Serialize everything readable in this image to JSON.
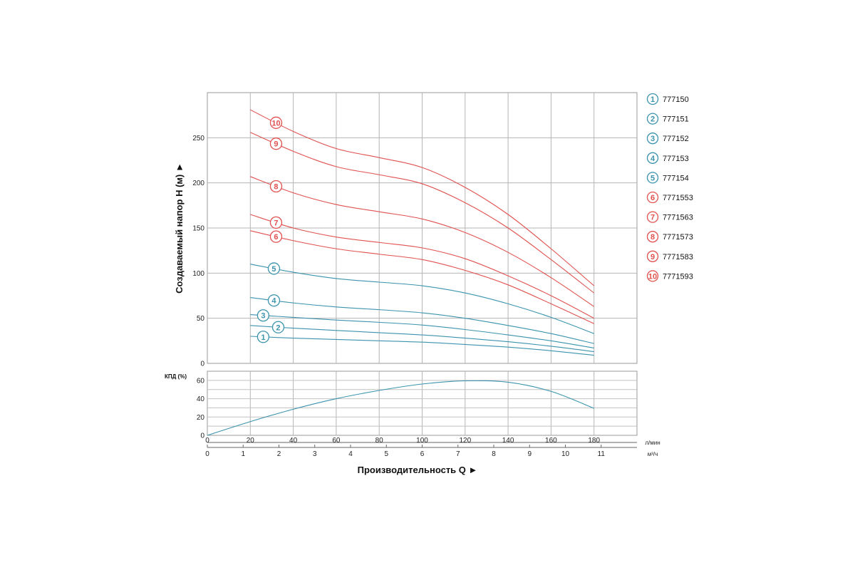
{
  "chart_data": [
    {
      "type": "line",
      "ylabel": "Создаваемый напор H (м) ►",
      "xlim": [
        0,
        200
      ],
      "ylim": [
        0,
        300
      ],
      "x_ticks": [
        20,
        40,
        60,
        80,
        100,
        120,
        140,
        160,
        180
      ],
      "y_ticks": [
        0,
        50,
        100,
        150,
        200,
        250
      ],
      "grid": true,
      "legend_position": "right",
      "x": [
        20,
        40,
        60,
        80,
        100,
        120,
        140,
        160,
        180
      ],
      "series": [
        {
          "marker": "1",
          "name": "777150",
          "color": "#3b93ad",
          "marker_x": 26,
          "values": [
            30,
            28,
            26.5,
            25,
            23.5,
            21,
            18,
            14,
            9
          ]
        },
        {
          "marker": "2",
          "name": "777151",
          "color": "#3b93ad",
          "marker_x": 33,
          "values": [
            42,
            39,
            36.5,
            34,
            31.5,
            28,
            24,
            19,
            13
          ]
        },
        {
          "marker": "3",
          "name": "777152",
          "color": "#3b93ad",
          "marker_x": 26,
          "values": [
            54,
            51,
            48,
            45.5,
            42.5,
            37.5,
            31.5,
            25,
            17
          ]
        },
        {
          "marker": "4",
          "name": "777153",
          "color": "#3b93ad",
          "marker_x": 31,
          "values": [
            73,
            67,
            62.5,
            59.5,
            56,
            50,
            42,
            33,
            22
          ]
        },
        {
          "marker": "5",
          "name": "777154",
          "color": "#3b93ad",
          "marker_x": 31,
          "values": [
            110,
            101,
            94,
            90,
            86,
            78,
            66,
            51,
            33
          ]
        },
        {
          "marker": "6",
          "name": "7771553",
          "color": "#e0514f",
          "marker_x": 32,
          "values": [
            147,
            136,
            127,
            121,
            115,
            103,
            87,
            66,
            44
          ]
        },
        {
          "marker": "7",
          "name": "7771563",
          "color": "#e0514f",
          "marker_x": 32,
          "values": [
            165,
            150,
            140,
            134,
            128,
            116,
            97,
            75,
            50
          ]
        },
        {
          "marker": "8",
          "name": "7771573",
          "color": "#e0514f",
          "marker_x": 32,
          "values": [
            207,
            189,
            176,
            168,
            160,
            145,
            123,
            95,
            63
          ]
        },
        {
          "marker": "9",
          "name": "7771583",
          "color": "#e0514f",
          "marker_x": 32,
          "values": [
            256,
            235,
            218,
            209,
            199,
            178,
            150,
            115,
            78
          ]
        },
        {
          "marker": "10",
          "name": "7771593",
          "color": "#e0514f",
          "marker_x": 32,
          "values": [
            281,
            257,
            238,
            228,
            217,
            195,
            165,
            127,
            86
          ]
        }
      ]
    },
    {
      "type": "line",
      "ylabel": "КПД (%)",
      "xlim": [
        0,
        200
      ],
      "ylim": [
        0,
        70
      ],
      "y_ticks": [
        0,
        20,
        40,
        60
      ],
      "grid": true,
      "x_axis_flow_lpm": {
        "unit": "л/мин",
        "ticks": [
          0,
          20,
          40,
          60,
          80,
          100,
          120,
          140,
          160,
          180
        ]
      },
      "x_axis_flow_m3h": {
        "unit": "м³/ч",
        "ticks": [
          0,
          1,
          2,
          3,
          4,
          5,
          6,
          7,
          8,
          9,
          10,
          11
        ]
      },
      "xlabel": "Производительность Q ►",
      "series": [
        {
          "color": "#3b93ad",
          "x": [
            0,
            20,
            40,
            60,
            80,
            100,
            120,
            140,
            160,
            180
          ],
          "values": [
            0,
            15,
            28.5,
            40,
            49,
            56,
            59.5,
            58,
            48,
            29.5
          ]
        }
      ]
    }
  ]
}
